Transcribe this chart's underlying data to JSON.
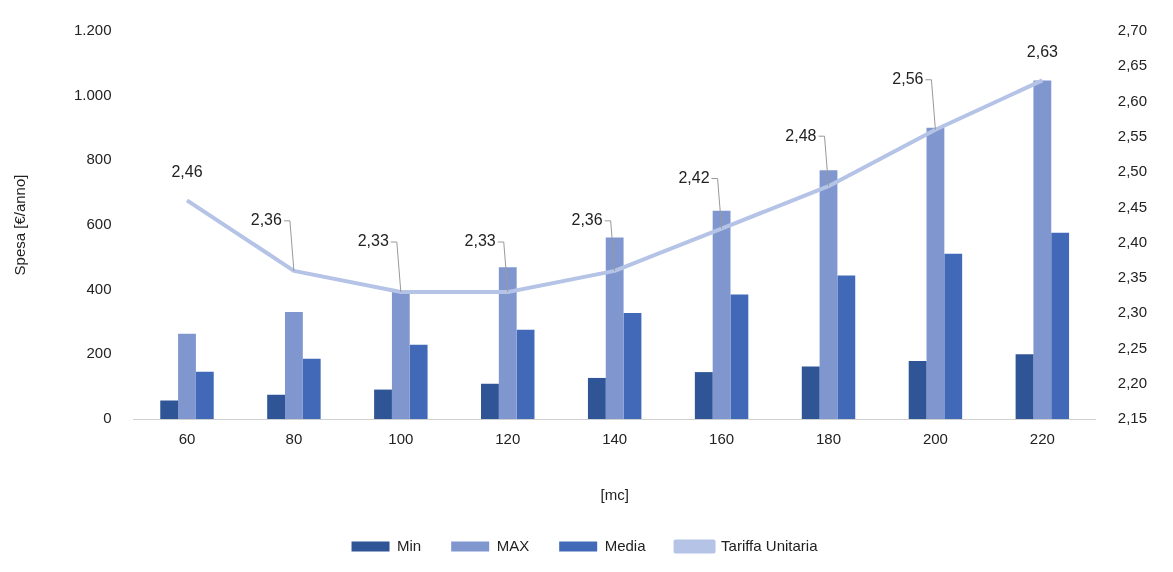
{
  "chart_data": {
    "type": "bar",
    "xlabel": "[mc]",
    "ylabel": "Spesa [€/anno]",
    "categories": [
      "60",
      "80",
      "100",
      "120",
      "140",
      "160",
      "180",
      "200",
      "220"
    ],
    "series": [
      {
        "name": "Min",
        "color": "#2f5597",
        "values": [
          57,
          75,
          91,
          109,
          127,
          145,
          162,
          179,
          200
        ]
      },
      {
        "name": "MAX",
        "color": "#7f96cf",
        "values": [
          264,
          331,
          397,
          469,
          561,
          644,
          769,
          901,
          1047
        ]
      },
      {
        "name": "Media",
        "color": "#4169b8",
        "values": [
          146,
          186,
          230,
          276,
          328,
          385,
          444,
          511,
          576
        ]
      },
      {
        "name": "Tariffa Unitaria",
        "type": "line",
        "axis": "y2",
        "color": "#b4c3e6",
        "values": [
          2.46,
          2.36,
          2.33,
          2.33,
          2.36,
          2.42,
          2.48,
          2.56,
          2.63
        ],
        "value_labels": [
          "2,46",
          "2,36",
          "2,33",
          "2,33",
          "2,36",
          "2,42",
          "2,48",
          "2,56",
          "2,63"
        ]
      }
    ],
    "ylim": [
      0,
      1200
    ],
    "yticks": [
      0,
      {
        "value": 200,
        "label": "200"
      },
      {
        "value": 400,
        "label": "400"
      },
      {
        "value": 600,
        "label": "600"
      },
      {
        "value": 800,
        "label": "800"
      },
      {
        "value": 1000,
        "label": "1.000"
      },
      {
        "value": 1200,
        "label": "1.200"
      }
    ],
    "y2lim": [
      2.15,
      2.7
    ],
    "y2ticks": [
      {
        "value": 2.15,
        "label": "2,15"
      },
      {
        "value": 2.2,
        "label": "2,20"
      },
      {
        "value": 2.25,
        "label": "2,25"
      },
      {
        "value": 2.3,
        "label": "2,30"
      },
      {
        "value": 2.35,
        "label": "2,35"
      },
      {
        "value": 2.4,
        "label": "2,40"
      },
      {
        "value": 2.45,
        "label": "2,45"
      },
      {
        "value": 2.5,
        "label": "2,50"
      },
      {
        "value": 2.55,
        "label": "2,55"
      },
      {
        "value": 2.6,
        "label": "2,60"
      },
      {
        "value": 2.65,
        "label": "2,65"
      },
      {
        "value": 2.7,
        "label": "2,70"
      }
    ],
    "legend": "bottom"
  }
}
